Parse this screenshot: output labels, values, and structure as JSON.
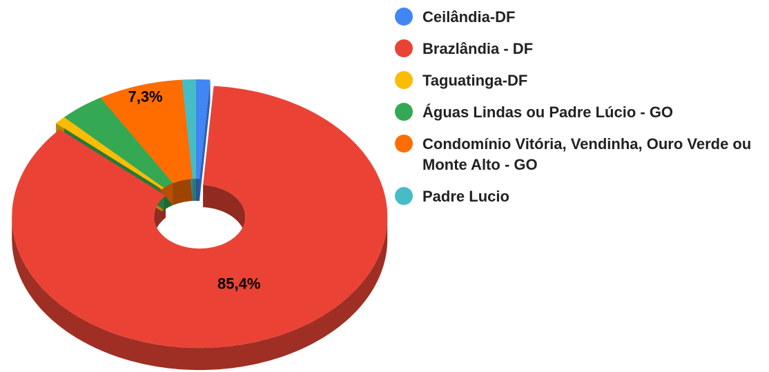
{
  "chart_data": {
    "type": "pie",
    "donut": true,
    "three_d": true,
    "categories": [
      "Ceilândia-DF",
      "Brazlândia - DF",
      "Taguatinga-DF",
      "Águas Lindas ou Padre Lúcio - GO",
      "Condomínio Vitória, Vendinha, Ouro Verde ou Monte Alto - GO",
      "Padre Lucio"
    ],
    "values": [
      1.2,
      85.4,
      1.0,
      3.9,
      7.3,
      1.2
    ],
    "value_labels": [
      null,
      "85,4%",
      null,
      null,
      "7,3%",
      null
    ],
    "colors": [
      "#4285f4",
      "#ea4335",
      "#fbbc04",
      "#34a853",
      "#ff6d01",
      "#46bdc6"
    ],
    "exploded": [
      1
    ],
    "legend": "right"
  }
}
